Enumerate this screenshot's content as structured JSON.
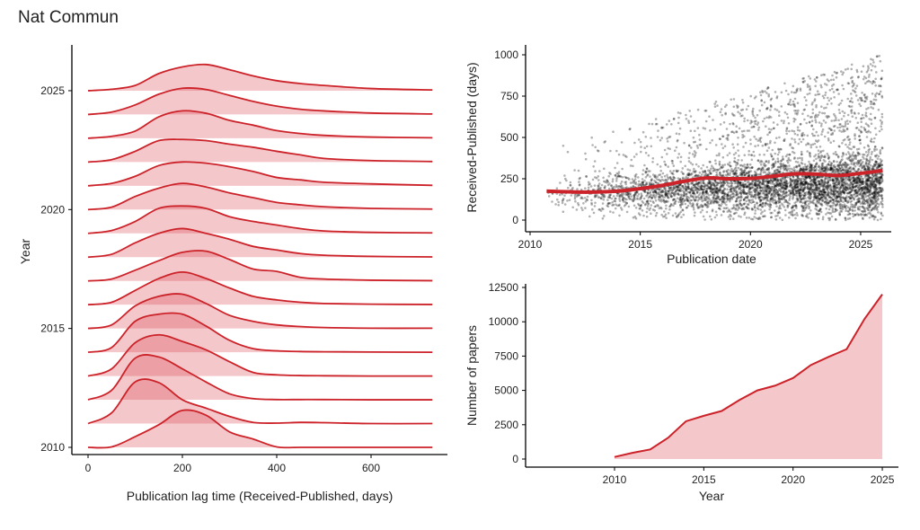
{
  "title": "Nat Commun",
  "colors": {
    "line": "#cc2229",
    "fill": "#d3232f",
    "point": "#000000"
  },
  "chart_data": [
    {
      "type": "ridgeline",
      "xlabel": "Publication lag time (Received-Published, days)",
      "ylabel": "Year",
      "xlim": [
        0,
        730
      ],
      "x_ticks": [
        "0",
        "200",
        "400",
        "600"
      ],
      "y_ticks": [
        "2010",
        "2015",
        "2020",
        "2025"
      ],
      "x": [
        0,
        50,
        100,
        150,
        200,
        250,
        300,
        350,
        400,
        450,
        500,
        600,
        730
      ],
      "series": [
        {
          "name": "2010",
          "values": [
            0,
            0.02,
            0.45,
            0.95,
            1.55,
            1.35,
            0.65,
            0.35,
            0.02,
            0,
            0,
            0,
            0
          ]
        },
        {
          "name": "2011",
          "values": [
            0,
            0.45,
            1.75,
            1.72,
            1.0,
            0.65,
            0.3,
            0.05,
            0.02,
            0.05,
            0.04,
            0,
            0
          ]
        },
        {
          "name": "2012",
          "values": [
            0,
            0.4,
            1.75,
            1.8,
            1.3,
            0.75,
            0.25,
            0.05,
            0.01,
            0.01,
            0.01,
            0,
            0
          ]
        },
        {
          "name": "2013",
          "values": [
            0,
            0.3,
            1.4,
            1.73,
            1.45,
            1.1,
            0.6,
            0.15,
            0.05,
            0.02,
            0.01,
            0,
            0
          ]
        },
        {
          "name": "2014",
          "values": [
            0,
            0.2,
            1.3,
            1.6,
            1.6,
            1.1,
            0.5,
            0.15,
            0.06,
            0.03,
            0.02,
            0.01,
            0
          ]
        },
        {
          "name": "2015",
          "values": [
            0,
            0.15,
            0.95,
            1.35,
            1.44,
            1.05,
            0.55,
            0.3,
            0.15,
            0.08,
            0.04,
            0.01,
            0.01
          ]
        },
        {
          "name": "2016",
          "values": [
            0,
            0.1,
            0.6,
            1.1,
            1.37,
            1.1,
            0.7,
            0.35,
            0.2,
            0.1,
            0.05,
            0.02,
            0.01
          ]
        },
        {
          "name": "2017",
          "values": [
            0,
            0.08,
            0.45,
            0.85,
            1.2,
            1.25,
            0.9,
            0.5,
            0.4,
            0.15,
            0.08,
            0.03,
            0.01
          ]
        },
        {
          "name": "2018",
          "values": [
            0,
            0.12,
            0.6,
            1.0,
            1.2,
            1.0,
            0.75,
            0.45,
            0.3,
            0.15,
            0.08,
            0.03,
            0.01
          ]
        },
        {
          "name": "2019",
          "values": [
            0,
            0.12,
            0.5,
            1.05,
            1.15,
            1.05,
            0.7,
            0.5,
            0.35,
            0.2,
            0.1,
            0.04,
            0.02
          ]
        },
        {
          "name": "2020",
          "values": [
            0,
            0.1,
            0.55,
            0.9,
            1.1,
            0.95,
            0.7,
            0.5,
            0.3,
            0.2,
            0.12,
            0.05,
            0.02
          ]
        },
        {
          "name": "2021",
          "values": [
            0,
            0.1,
            0.4,
            0.85,
            1.0,
            0.95,
            0.8,
            0.6,
            0.35,
            0.25,
            0.15,
            0.08,
            0.02
          ]
        },
        {
          "name": "2022",
          "values": [
            0,
            0.1,
            0.45,
            0.9,
            0.95,
            0.9,
            0.75,
            0.62,
            0.45,
            0.3,
            0.15,
            0.06,
            0.02
          ]
        },
        {
          "name": "2023",
          "values": [
            0,
            0.08,
            0.3,
            0.9,
            1.15,
            1.05,
            0.75,
            0.55,
            0.32,
            0.2,
            0.12,
            0.05,
            0.02
          ]
        },
        {
          "name": "2024",
          "values": [
            0,
            0.1,
            0.4,
            0.85,
            1.1,
            1.05,
            0.8,
            0.55,
            0.35,
            0.22,
            0.15,
            0.06,
            0.02
          ]
        },
        {
          "name": "2025",
          "values": [
            0,
            0.06,
            0.22,
            0.72,
            1.0,
            1.1,
            0.88,
            0.62,
            0.42,
            0.3,
            0.22,
            0.09,
            0.03
          ]
        }
      ]
    },
    {
      "type": "scatter",
      "xlabel": "Publication date",
      "ylabel": "Received-Published (days)",
      "xlim": [
        2010,
        2026.5
      ],
      "ylim": [
        0,
        1000
      ],
      "x_ticks": [
        "2010",
        "2015",
        "2020",
        "2025"
      ],
      "y_ticks": [
        "0",
        "250",
        "500",
        "750",
        "1000"
      ],
      "points_x_range": [
        2010.75,
        2026
      ],
      "points_y_range": [
        0,
        1000
      ],
      "trend": {
        "x": [
          2010.75,
          2012,
          2013,
          2014,
          2015,
          2016,
          2017,
          2018,
          2019,
          2020,
          2021,
          2022,
          2023,
          2024,
          2025,
          2026
        ],
        "y": [
          175,
          170,
          170,
          175,
          190,
          210,
          235,
          255,
          250,
          252,
          265,
          280,
          278,
          270,
          283,
          300
        ]
      }
    },
    {
      "type": "area",
      "xlabel": "Year",
      "ylabel": "Number of papers",
      "xlim": [
        2005,
        2026
      ],
      "ylim": [
        0,
        12500
      ],
      "x_ticks": [
        "2010",
        "2015",
        "2020",
        "2025"
      ],
      "y_ticks": [
        "0",
        "2500",
        "5000",
        "7500",
        "10000",
        "12500"
      ],
      "x": [
        2010,
        2011,
        2012,
        2013,
        2014,
        2015,
        2016,
        2017,
        2018,
        2019,
        2020,
        2021,
        2022,
        2023,
        2024,
        2025
      ],
      "values": [
        150,
        450,
        700,
        1550,
        2750,
        3150,
        3500,
        4300,
        5000,
        5350,
        5900,
        6850,
        7450,
        8000,
        10200,
        12000
      ]
    }
  ]
}
